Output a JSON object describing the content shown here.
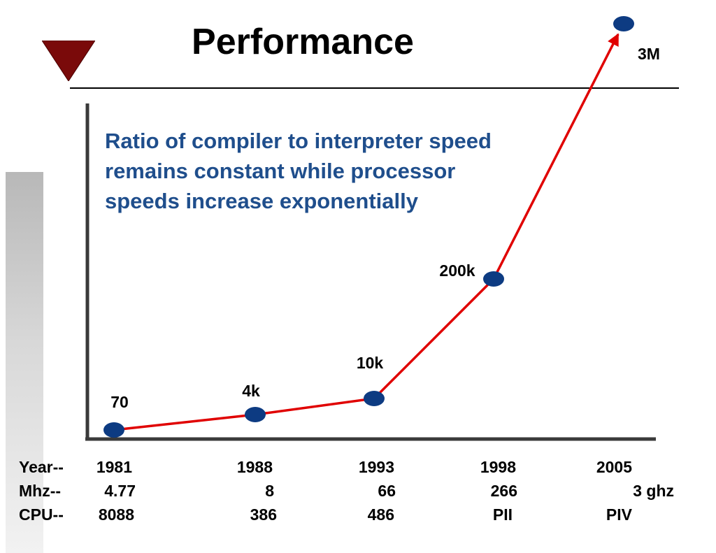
{
  "slide": {
    "title": "Performance",
    "annotation": "Ratio of compiler to interpreter speed remains constant while processor speeds increase exponentially",
    "accent_color": "#7a0a0a"
  },
  "chart_data": {
    "type": "line",
    "title": "Performance",
    "x": [
      "1981",
      "1988",
      "1993",
      "1998",
      "2005"
    ],
    "series": [
      {
        "values": [
          70,
          4000,
          10000,
          200000,
          3000000
        ],
        "color": "#e00000",
        "marker_color": "#0d3b82"
      }
    ],
    "point_labels": [
      "70",
      "4k",
      "10k",
      "200k",
      "3M"
    ],
    "grid": false,
    "legend": "none"
  },
  "table": {
    "rows": [
      {
        "label": "Year--",
        "cells": [
          "1981",
          "1988",
          "1993",
          "1998",
          "2005"
        ]
      },
      {
        "label": "Mhz--",
        "cells": [
          "4.77",
          "8",
          "66",
          "266",
          "3 ghz"
        ]
      },
      {
        "label": "CPU--",
        "cells": [
          "8088",
          "386",
          "486",
          "PII",
          "PIV"
        ]
      }
    ]
  }
}
